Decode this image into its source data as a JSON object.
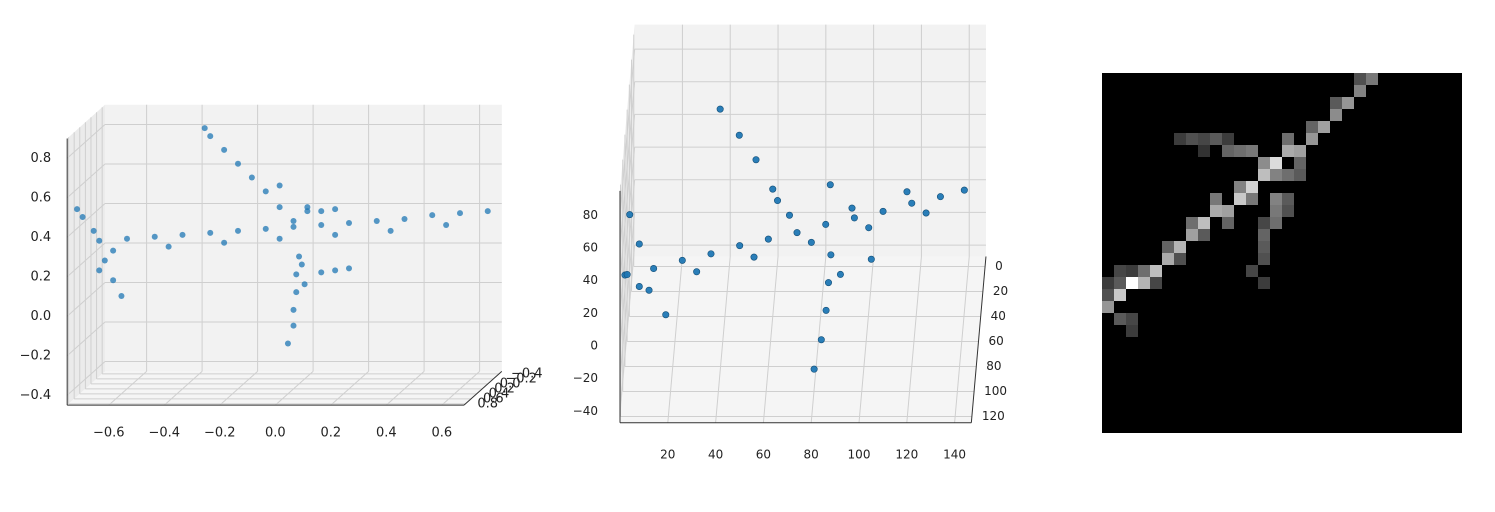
{
  "chart_data": [
    {
      "type": "scatter3d",
      "color": "#1f77b4",
      "x": [
        -0.7,
        -0.6,
        -0.5,
        -0.4,
        -0.3,
        -0.2,
        -0.1,
        0,
        0.1,
        0.2,
        0.3,
        0.4,
        0.5,
        0.6,
        0.7,
        -0.65,
        -0.45,
        -0.25,
        -0.05,
        0.15,
        0.35,
        0.55,
        0,
        -0.05,
        -0.1,
        -0.15,
        -0.2,
        -0.25,
        -0.3,
        -0.32,
        0.05,
        -0.05,
        0.1,
        0.15,
        0.05,
        0.02,
        0.01,
        0.01,
        0,
        0,
        -0.02,
        0.03,
        0.04,
        0.15,
        0.2,
        0.1,
        -0.72,
        -0.76,
        -0.78,
        -0.68,
        -0.65,
        -0.62,
        -0.7
      ],
      "y": [
        0.2,
        0.2,
        0.2,
        0.2,
        0.2,
        0.2,
        0.2,
        0.2,
        0.2,
        0.2,
        0.2,
        0.2,
        0.2,
        0.2,
        0.2,
        0.2,
        0.2,
        0.2,
        0.2,
        0.2,
        0.2,
        0.2,
        0.2,
        0.2,
        0.2,
        0.2,
        0.2,
        0.2,
        0.2,
        0.2,
        0.2,
        0.2,
        0.2,
        0.2,
        0.2,
        0.2,
        0.2,
        0.2,
        0.2,
        0.2,
        0.2,
        0.2,
        0.2,
        0.2,
        0.2,
        0.2,
        0.2,
        0.2,
        0.2,
        0.2,
        0.2,
        0.2,
        0.2
      ],
      "z": [
        0.3,
        0.31,
        0.32,
        0.33,
        0.34,
        0.35,
        0.36,
        0.37,
        0.38,
        0.39,
        0.4,
        0.41,
        0.43,
        0.44,
        0.45,
        0.25,
        0.27,
        0.29,
        0.31,
        0.33,
        0.35,
        0.38,
        0.4,
        0.47,
        0.55,
        0.62,
        0.69,
        0.76,
        0.83,
        0.87,
        0.45,
        0.58,
        0.45,
        0.46,
        0.47,
        0.22,
        0.13,
        0.04,
        -0.05,
        -0.13,
        -0.22,
        0.18,
        0.08,
        0.15,
        0.16,
        0.14,
        0.35,
        0.42,
        0.46,
        0.2,
        0.1,
        0.02,
        0.15
      ],
      "xlim": [
        -0.75,
        0.68
      ],
      "ylim": [
        -0.5,
        0.85
      ],
      "zlim": [
        -0.45,
        0.9
      ],
      "xticks": [
        {
          "value": -0.6,
          "label": "−0.6"
        },
        {
          "value": -0.4,
          "label": "−0.4"
        },
        {
          "value": -0.2,
          "label": "−0.2"
        },
        {
          "value": 0,
          "label": "0.0"
        },
        0.2,
        0.4,
        0.6
      ],
      "yticks": [
        {
          "value": -0.4,
          "label": "−0.4"
        },
        {
          "value": -0.2,
          "label": "−0.2"
        },
        {
          "value": 0,
          "label": "0.0"
        },
        0.2,
        0.4,
        0.6,
        0.8
      ],
      "zticks": [
        {
          "value": -0.4,
          "label": "−0.4"
        },
        {
          "value": -0.2,
          "label": "−0.2"
        },
        {
          "value": 0,
          "label": "0.0"
        },
        0.2,
        0.4,
        0.6,
        0.8
      ]
    },
    {
      "type": "scatter3d",
      "color": "#1f77b4",
      "x": [
        0,
        12,
        24,
        36,
        48,
        60,
        72,
        84,
        96,
        108,
        120,
        132,
        142,
        6,
        30,
        54,
        78,
        102,
        126,
        67,
        60,
        53,
        46,
        38,
        62,
        88,
        87,
        86,
        84,
        81,
        92,
        2,
        6,
        18,
        11,
        0,
        85,
        104,
        95,
        118
      ],
      "y": [
        80,
        80,
        80,
        80,
        80,
        80,
        80,
        80,
        80,
        80,
        80,
        80,
        80,
        80,
        80,
        80,
        80,
        80,
        80,
        40,
        40,
        40,
        40,
        40,
        40,
        120,
        120,
        120,
        120,
        120,
        120,
        80,
        80,
        100,
        100,
        60,
        60,
        100,
        80,
        80
      ],
      "z": [
        9,
        13,
        18,
        22,
        27,
        31,
        35,
        40,
        44,
        48,
        53,
        57,
        61,
        2,
        11,
        20,
        29,
        38,
        47,
        15,
        31,
        49,
        64,
        80,
        24,
        52,
        35,
        18,
        0,
        -18,
        40,
        46,
        28,
        0,
        15,
        -6,
        49,
        34,
        50,
        60
      ],
      "xlim": [
        0,
        147
      ],
      "ylim": [
        -8,
        125
      ],
      "zlim": [
        -47,
        95
      ],
      "xticks": [
        20,
        40,
        60,
        80,
        100,
        120,
        140
      ],
      "yticks": [
        0,
        20,
        40,
        60,
        80,
        100,
        120
      ],
      "zticks": [
        {
          "value": -40,
          "label": "−40"
        },
        {
          "value": -20,
          "label": "−20"
        },
        0,
        20,
        40,
        60,
        80
      ]
    },
    {
      "type": "image",
      "shape": [
        30,
        30
      ],
      "cells": [
        [
          0,
          19,
          150
        ],
        [
          1,
          18,
          200
        ],
        [
          2,
          17,
          255
        ],
        [
          3,
          17,
          180
        ],
        [
          4,
          16,
          190
        ],
        [
          5,
          15,
          170
        ],
        [
          6,
          14,
          180
        ],
        [
          7,
          13,
          160
        ],
        [
          8,
          12,
          190
        ],
        [
          9,
          11,
          170
        ],
        [
          10,
          11,
          160
        ],
        [
          11,
          10,
          200
        ],
        [
          12,
          9,
          210
        ],
        [
          13,
          8,
          190
        ],
        [
          14,
          7,
          220
        ],
        [
          15,
          6,
          170
        ],
        [
          16,
          6,
          160
        ],
        [
          17,
          5,
          150
        ],
        [
          18,
          4,
          160
        ],
        [
          19,
          3,
          140
        ],
        [
          20,
          2,
          150
        ],
        [
          21,
          1,
          130
        ],
        [
          22,
          0,
          120
        ],
        [
          1,
          17,
          90
        ],
        [
          3,
          16,
          110
        ],
        [
          5,
          14,
          100
        ],
        [
          7,
          12,
          110
        ],
        [
          9,
          10,
          120
        ],
        [
          11,
          9,
          130
        ],
        [
          13,
          7,
          140
        ],
        [
          15,
          5,
          110
        ],
        [
          17,
          4,
          100
        ],
        [
          19,
          2,
          90
        ],
        [
          21,
          0,
          80
        ],
        [
          4,
          17,
          70
        ],
        [
          6,
          15,
          80
        ],
        [
          8,
          13,
          90
        ],
        [
          10,
          12,
          100
        ],
        [
          12,
          10,
          120
        ],
        [
          14,
          8,
          130
        ],
        [
          16,
          7,
          100
        ],
        [
          6,
          5,
          60
        ],
        [
          7,
          5,
          80
        ],
        [
          8,
          5,
          70
        ],
        [
          9,
          5,
          90
        ],
        [
          10,
          6,
          100
        ],
        [
          11,
          6,
          110
        ],
        [
          12,
          6,
          120
        ],
        [
          8,
          6,
          50
        ],
        [
          10,
          5,
          60
        ],
        [
          14,
          10,
          130
        ],
        [
          14,
          11,
          120
        ],
        [
          14,
          12,
          110
        ],
        [
          13,
          13,
          100
        ],
        [
          13,
          14,
          90
        ],
        [
          13,
          15,
          80
        ],
        [
          12,
          16,
          70
        ],
        [
          13,
          17,
          60
        ],
        [
          15,
          10,
          90
        ],
        [
          15,
          11,
          80
        ],
        [
          13,
          12,
          70
        ],
        [
          1,
          20,
          90
        ],
        [
          2,
          20,
          70
        ],
        [
          2,
          21,
          60
        ],
        [
          0,
          17,
          60
        ],
        [
          1,
          16,
          70
        ],
        [
          2,
          16,
          60
        ],
        [
          0,
          18,
          80
        ],
        [
          15,
          8,
          110
        ],
        [
          16,
          8,
          90
        ]
      ]
    }
  ]
}
